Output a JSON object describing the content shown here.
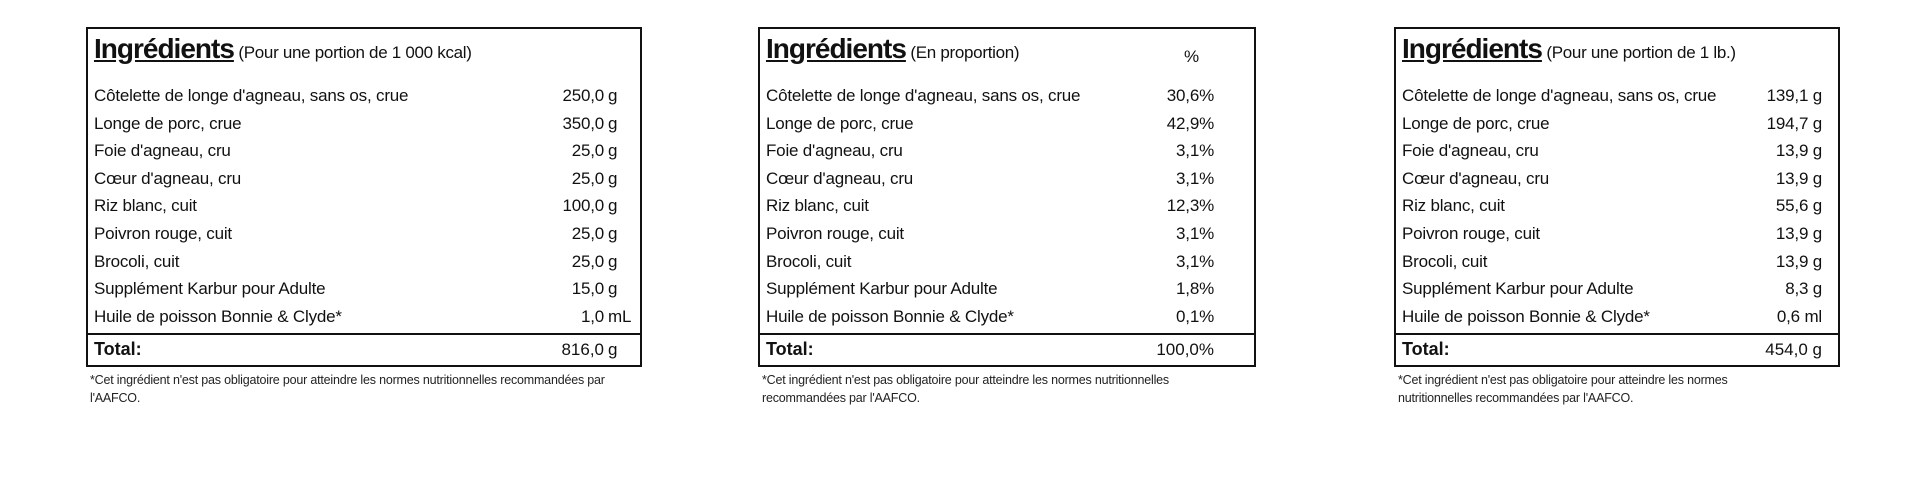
{
  "panels": [
    {
      "title": "Ingrédients",
      "subtitle": "(Pour une portion de 1 000 kcal)",
      "percent_header": "",
      "rows": [
        {
          "name": "Côtelette de longe d'agneau, sans os, crue",
          "value": "250,0",
          "unit": "g"
        },
        {
          "name": "Longe de porc, crue",
          "value": "350,0",
          "unit": "g"
        },
        {
          "name": "Foie d'agneau, cru",
          "value": "25,0",
          "unit": "g"
        },
        {
          "name": "Cœur d'agneau, cru",
          "value": "25,0",
          "unit": "g"
        },
        {
          "name": "Riz blanc, cuit",
          "value": "100,0",
          "unit": "g"
        },
        {
          "name": "Poivron rouge, cuit",
          "value": "25,0",
          "unit": "g"
        },
        {
          "name": "Brocoli, cuit",
          "value": "25,0",
          "unit": "g"
        },
        {
          "name": "Supplément Karbur pour Adulte",
          "value": "15,0",
          "unit": "g"
        },
        {
          "name": "Huile de poisson Bonnie & Clyde*",
          "value": "1,0",
          "unit": "mL"
        }
      ],
      "total_label": "Total:",
      "total_value": "816,0",
      "total_unit": "g",
      "note": "*Cet ingrédient n'est pas obligatoire pour atteindre les normes nutritionnelles recommandées par l'AAFCO."
    },
    {
      "title": "Ingrédients",
      "subtitle": "(En proportion)",
      "percent_header": "%",
      "rows": [
        {
          "name": "Côtelette de longe d'agneau, sans os, crue",
          "value": "30,6%",
          "unit": ""
        },
        {
          "name": "Longe de porc, crue",
          "value": "42,9%",
          "unit": ""
        },
        {
          "name": "Foie d'agneau, cru",
          "value": "3,1%",
          "unit": ""
        },
        {
          "name": "Cœur d'agneau, cru",
          "value": "3,1%",
          "unit": ""
        },
        {
          "name": "Riz blanc, cuit",
          "value": "12,3%",
          "unit": ""
        },
        {
          "name": "Poivron rouge, cuit",
          "value": "3,1%",
          "unit": ""
        },
        {
          "name": "Brocoli, cuit",
          "value": "3,1%",
          "unit": ""
        },
        {
          "name": "Supplément Karbur pour Adulte",
          "value": "1,8%",
          "unit": ""
        },
        {
          "name": "Huile de poisson Bonnie & Clyde*",
          "value": "0,1%",
          "unit": ""
        }
      ],
      "total_label": "Total:",
      "total_value": "100,0%",
      "total_unit": "",
      "note": "*Cet ingrédient n'est pas obligatoire pour atteindre les normes nutritionnelles recommandées par l'AAFCO."
    },
    {
      "title": "Ingrédients",
      "subtitle": "(Pour une portion de 1 lb.)",
      "percent_header": "",
      "rows": [
        {
          "name": "Côtelette de longe d'agneau, sans os, crue",
          "value": "139,1 g",
          "unit": ""
        },
        {
          "name": "Longe de porc, crue",
          "value": "194,7 g",
          "unit": ""
        },
        {
          "name": "Foie d'agneau, cru",
          "value": "13,9 g",
          "unit": ""
        },
        {
          "name": "Cœur d'agneau, cru",
          "value": "13,9 g",
          "unit": ""
        },
        {
          "name": "Riz blanc, cuit",
          "value": "55,6 g",
          "unit": ""
        },
        {
          "name": "Poivron rouge, cuit",
          "value": "13,9 g",
          "unit": ""
        },
        {
          "name": "Brocoli, cuit",
          "value": "13,9 g",
          "unit": ""
        },
        {
          "name": "Supplément Karbur pour Adulte",
          "value": "8,3 g",
          "unit": ""
        },
        {
          "name": "Huile de poisson Bonnie & Clyde*",
          "value": "0,6 ml",
          "unit": ""
        }
      ],
      "total_label": "Total:",
      "total_value": "454,0 g",
      "total_unit": "",
      "note": "*Cet ingrédient n'est pas obligatoire pour atteindre les normes nutritionnelles recommandées par l'AAFCO."
    }
  ]
}
